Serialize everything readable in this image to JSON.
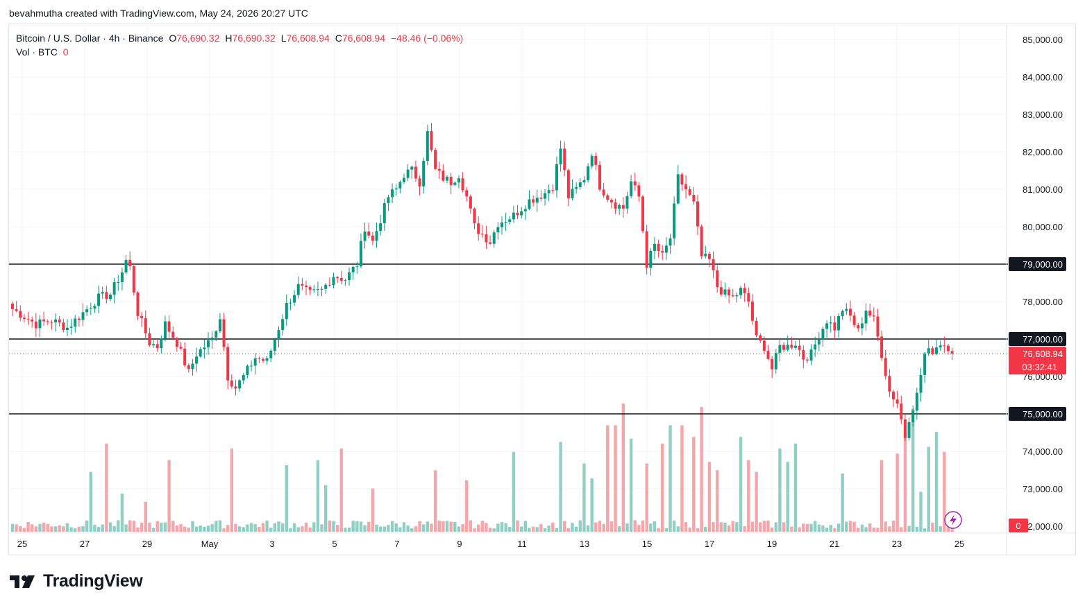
{
  "header": {
    "creator_line": "bevahmutha created with TradingView.com, May 24, 2026 20:27 UTC"
  },
  "legend": {
    "symbol": "Bitcoin / U.S. Dollar · 4h · Binance",
    "open_label": "O",
    "open": "76,690.32",
    "high_label": "H",
    "high": "76,690.32",
    "low_label": "L",
    "low": "76,608.94",
    "close_label": "C",
    "close": "76,608.94",
    "change": "−48.46 (−0.06%)",
    "volume_label": "Vol · BTC",
    "volume_value": "0"
  },
  "brand": {
    "name": "TradingView",
    "logo_icon": "tradingview-logo-icon"
  },
  "colors": {
    "up": "#089981",
    "down": "#f23645",
    "vol_up": "#8fcfc4",
    "vol_down": "#f5a6ab",
    "level": "#131722",
    "price_tag": "#f23645"
  },
  "chart_data": {
    "type": "candlestick",
    "symbol": "BTCUSD",
    "timeframe": "4h",
    "x_tick_labels": [
      "25",
      "27",
      "29",
      "May",
      "3",
      "5",
      "7",
      "9",
      "11",
      "13",
      "15",
      "17",
      "19",
      "21",
      "23",
      "25"
    ],
    "y_tick_labels": [
      "85,000.00",
      "84,000.00",
      "83,000.00",
      "82,000.00",
      "81,000.00",
      "80,000.00",
      "78,000.00",
      "76,000.00",
      "74,000.00",
      "73,000.00",
      "72,000.00"
    ],
    "ylim": [
      72000,
      85200
    ],
    "horizontal_levels": [
      {
        "price": 79000,
        "label": "79,000.00"
      },
      {
        "price": 77000,
        "label": "77,000.00"
      },
      {
        "price": 75000,
        "label": "75,000.00"
      }
    ],
    "last_price": {
      "price": 76608.94,
      "label": "76,608.94",
      "countdown": "03:32:41"
    },
    "volume_last_label": "0",
    "close_path": [
      [
        0,
        77800
      ],
      [
        6,
        77400
      ],
      [
        10,
        77500
      ],
      [
        14,
        77300
      ],
      [
        18,
        77700
      ],
      [
        22,
        78100
      ],
      [
        25,
        78200
      ],
      [
        28,
        78800
      ],
      [
        29,
        79100
      ],
      [
        30,
        78900
      ],
      [
        32,
        77700
      ],
      [
        35,
        76900
      ],
      [
        37,
        76800
      ],
      [
        39,
        77400
      ],
      [
        42,
        76900
      ],
      [
        45,
        76100
      ],
      [
        47,
        76600
      ],
      [
        51,
        77000
      ],
      [
        53,
        77600
      ],
      [
        55,
        76000
      ],
      [
        57,
        75700
      ],
      [
        59,
        76000
      ],
      [
        62,
        76500
      ],
      [
        65,
        76400
      ],
      [
        67,
        77000
      ],
      [
        70,
        77900
      ],
      [
        73,
        78400
      ],
      [
        76,
        78200
      ],
      [
        79,
        78300
      ],
      [
        82,
        78700
      ],
      [
        85,
        78600
      ],
      [
        88,
        79000
      ],
      [
        90,
        80000
      ],
      [
        92,
        79600
      ],
      [
        94,
        80200
      ],
      [
        96,
        80800
      ],
      [
        98,
        81000
      ],
      [
        100,
        81400
      ],
      [
        102,
        81500
      ],
      [
        104,
        81200
      ],
      [
        106,
        82500
      ],
      [
        108,
        81500
      ],
      [
        110,
        81300
      ],
      [
        112,
        81200
      ],
      [
        114,
        81400
      ],
      [
        116,
        80800
      ],
      [
        118,
        80000
      ],
      [
        120,
        79800
      ],
      [
        122,
        79600
      ],
      [
        124,
        80100
      ],
      [
        126,
        80200
      ],
      [
        128,
        80300
      ],
      [
        130,
        80500
      ],
      [
        132,
        80700
      ],
      [
        134,
        80800
      ],
      [
        136,
        80900
      ],
      [
        138,
        81100
      ],
      [
        140,
        82100
      ],
      [
        142,
        80800
      ],
      [
        144,
        81000
      ],
      [
        146,
        81300
      ],
      [
        148,
        82000
      ],
      [
        150,
        81100
      ],
      [
        152,
        80800
      ],
      [
        154,
        80600
      ],
      [
        156,
        80500
      ],
      [
        158,
        81200
      ],
      [
        160,
        80800
      ],
      [
        162,
        79000
      ],
      [
        164,
        79500
      ],
      [
        166,
        79200
      ],
      [
        168,
        79700
      ],
      [
        170,
        81300
      ],
      [
        172,
        81000
      ],
      [
        174,
        80600
      ],
      [
        176,
        79200
      ],
      [
        178,
        79100
      ],
      [
        180,
        78400
      ],
      [
        182,
        78200
      ],
      [
        184,
        78100
      ],
      [
        186,
        78300
      ],
      [
        188,
        78000
      ],
      [
        190,
        77000
      ],
      [
        192,
        76800
      ],
      [
        194,
        76200
      ],
      [
        196,
        76800
      ],
      [
        198,
        76800
      ],
      [
        200,
        76900
      ],
      [
        202,
        76500
      ],
      [
        204,
        76600
      ],
      [
        206,
        77100
      ],
      [
        208,
        77500
      ],
      [
        210,
        77300
      ],
      [
        212,
        77800
      ],
      [
        214,
        77600
      ],
      [
        216,
        77200
      ],
      [
        218,
        77800
      ],
      [
        220,
        77500
      ],
      [
        222,
        76600
      ],
      [
        224,
        75600
      ],
      [
        226,
        75300
      ],
      [
        228,
        74400
      ],
      [
        229,
        74900
      ],
      [
        231,
        75500
      ],
      [
        233,
        76600
      ],
      [
        235,
        76700
      ],
      [
        237,
        76900
      ],
      [
        239,
        76800
      ],
      [
        240,
        76608.94
      ]
    ],
    "volume_spikes": [
      [
        20,
        0.36
      ],
      [
        24,
        0.53
      ],
      [
        28,
        0.23
      ],
      [
        34,
        0.18
      ],
      [
        40,
        0.43
      ],
      [
        56,
        0.5
      ],
      [
        70,
        0.4
      ],
      [
        78,
        0.43
      ],
      [
        80,
        0.28
      ],
      [
        84,
        0.5
      ],
      [
        92,
        0.26
      ],
      [
        108,
        0.37
      ],
      [
        116,
        0.31
      ],
      [
        128,
        0.48
      ],
      [
        140,
        0.54
      ],
      [
        146,
        0.41
      ],
      [
        148,
        0.32
      ],
      [
        152,
        0.64
      ],
      [
        154,
        0.64
      ],
      [
        156,
        0.77
      ],
      [
        158,
        0.56
      ],
      [
        162,
        0.41
      ],
      [
        166,
        0.53
      ],
      [
        168,
        0.64
      ],
      [
        171,
        0.64
      ],
      [
        174,
        0.57
      ],
      [
        176,
        0.75
      ],
      [
        178,
        0.42
      ],
      [
        180,
        0.37
      ],
      [
        186,
        0.57
      ],
      [
        188,
        0.43
      ],
      [
        190,
        0.36
      ],
      [
        196,
        0.5
      ],
      [
        198,
        0.42
      ],
      [
        200,
        0.53
      ],
      [
        212,
        0.35
      ],
      [
        222,
        0.43
      ],
      [
        226,
        0.47
      ],
      [
        228,
        0.63
      ],
      [
        230,
        0.74
      ],
      [
        232,
        0.24
      ],
      [
        234,
        0.51
      ],
      [
        236,
        0.6
      ],
      [
        238,
        0.48
      ]
    ]
  }
}
